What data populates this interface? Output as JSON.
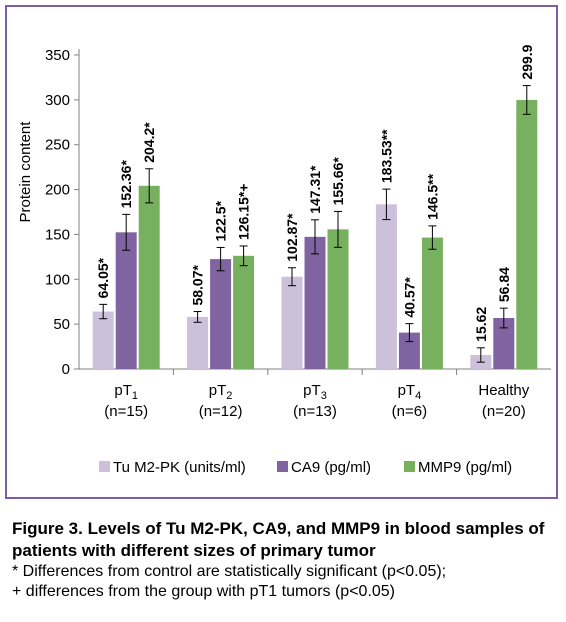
{
  "chart_data": {
    "type": "bar",
    "ylabel": "Protein content",
    "ylim": [
      0,
      350
    ],
    "yticks": [
      0,
      50,
      100,
      150,
      200,
      250,
      300,
      350
    ],
    "grid": false,
    "legend": "bottom",
    "categories": [
      {
        "label": "pT",
        "sub": "1",
        "n": "(n=15)"
      },
      {
        "label": "pT",
        "sub": "2",
        "n": "(n=12)"
      },
      {
        "label": "pT",
        "sub": "3",
        "n": "(n=13)"
      },
      {
        "label": "pT",
        "sub": "4",
        "n": "(n=6)"
      },
      {
        "label": "Healthy",
        "sub": "",
        "n": "(n=20)"
      }
    ],
    "series": [
      {
        "name": "Tu M2-PK (units/ml)",
        "color": "#ccc0da",
        "values": [
          64.05,
          58.07,
          102.87,
          183.53,
          15.62
        ],
        "errors": [
          8,
          6,
          10,
          17,
          8
        ],
        "labels": [
          "64.05*",
          "58.07*",
          "102.87*",
          "183.53**",
          "15.62"
        ]
      },
      {
        "name": "CA9 (pg/ml)",
        "color": "#8064a2",
        "values": [
          152.36,
          122.5,
          147.31,
          40.57,
          56.84
        ],
        "errors": [
          20,
          13,
          19,
          10,
          11
        ],
        "labels": [
          "152.36*",
          "122.5*",
          "147.31*",
          "40.57*",
          "56.84"
        ]
      },
      {
        "name": "MMP9 (pg/ml)",
        "color": "#77b05e",
        "values": [
          204.2,
          126.15,
          155.66,
          146.5,
          299.9
        ],
        "errors": [
          19,
          11,
          20,
          13,
          16
        ],
        "labels": [
          "204.2*",
          "126.15*+",
          "155.66*",
          "146.5**",
          "299.9"
        ]
      }
    ]
  },
  "caption": {
    "title": "Figure 3. Levels of Tu M2-PK, CA9, and MMP9 in blood samples of patients with different sizes of primary tumor",
    "note1": "* Differences from control are statistically significant (p<0.05);",
    "note2": "+ differences from the group with pT1 tumors (p<0.05)"
  }
}
